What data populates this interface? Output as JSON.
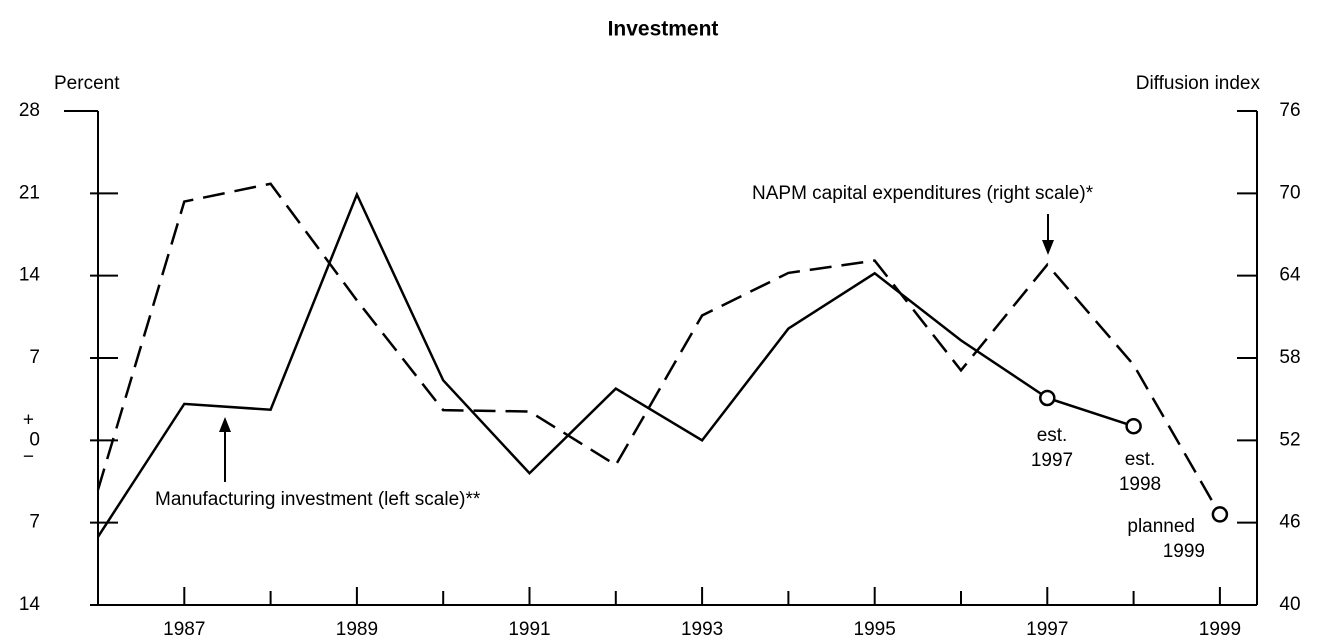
{
  "chart_data": {
    "type": "line",
    "title": "Investment",
    "y_label": "Percent",
    "y2_label": "Diffusion index",
    "x": [
      1986,
      1987,
      1988,
      1989,
      1990,
      1991,
      1992,
      1993,
      1994,
      1995,
      1996,
      1997,
      1998,
      1999
    ],
    "xlim": [
      1986,
      1999.43
    ],
    "xticks": [
      1987,
      1989,
      1991,
      1993,
      1995,
      1997,
      1999
    ],
    "xminor_ticks": [
      1988,
      1990,
      1992,
      1994,
      1996,
      1998
    ],
    "ylim": [
      -14,
      28
    ],
    "yticks": [
      28,
      21,
      14,
      7,
      0,
      {
        "value": -7,
        "label": "7"
      },
      {
        "value": -14,
        "label": "14"
      }
    ],
    "zero_signs": [
      "+",
      "−"
    ],
    "y2lim": [
      40,
      76
    ],
    "y2ticks": [
      76,
      70,
      64,
      58,
      52,
      46,
      40
    ],
    "series": [
      {
        "name": "Manufacturing investment (left scale)**",
        "color": "#000000",
        "dash": false,
        "values": [
          -8.2,
          3.1,
          2.6,
          20.9,
          5.1,
          -2.8,
          4.4,
          0,
          9.5,
          14.2,
          8.5,
          3.6,
          1.2,
          null
        ],
        "marker_indices": [
          11,
          12
        ]
      },
      {
        "name": "NAPM capital expenditures (right scale)*",
        "color": "#000000",
        "dash": true,
        "axis": "y2",
        "values": [
          48.4,
          69.4,
          70.7,
          62.2,
          54.2,
          54.1,
          50.2,
          61.1,
          64.2,
          65.1,
          57.1,
          64.8,
          57.5,
          46.6
        ],
        "marker_indices": [
          13
        ]
      }
    ],
    "annotations": [
      {
        "lines": [
          "est.",
          "1997"
        ]
      },
      {
        "lines": [
          "est.",
          "1998"
        ]
      },
      {
        "lines": [
          "planned",
          "1999"
        ]
      }
    ]
  }
}
